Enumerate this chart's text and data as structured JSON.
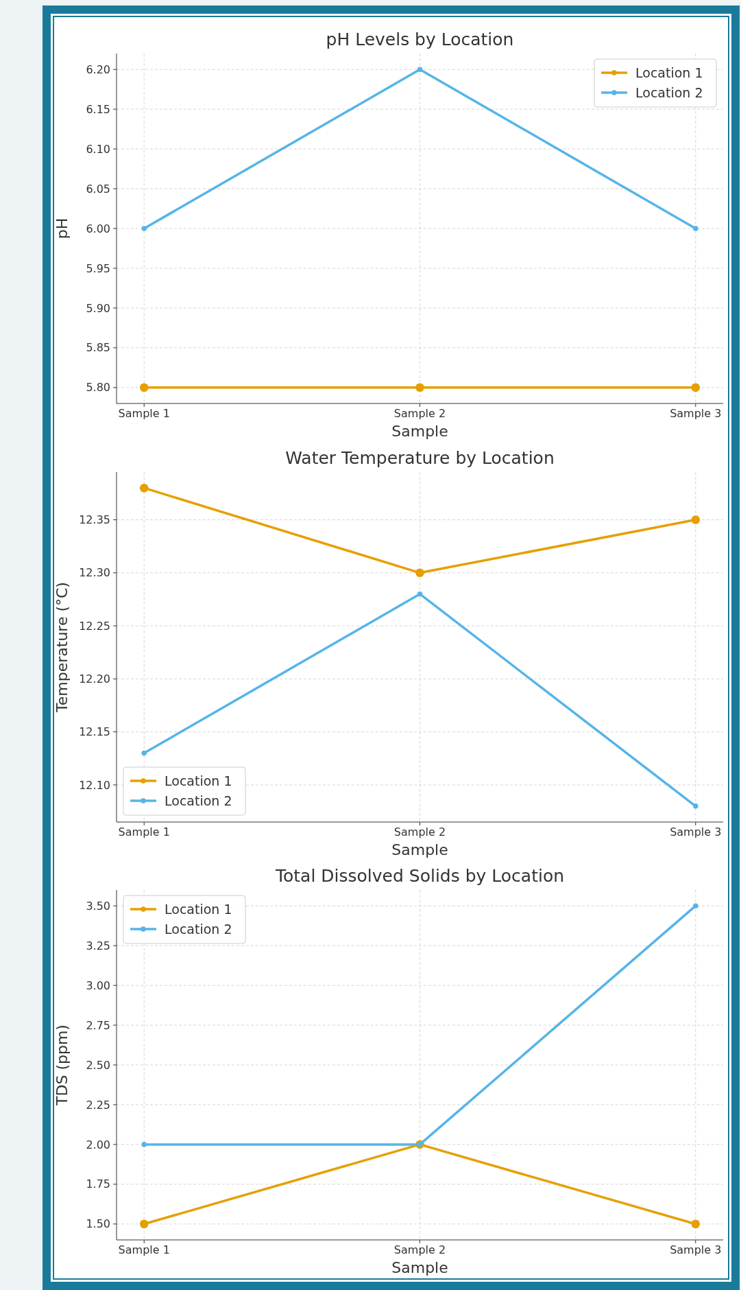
{
  "chart_data": [
    {
      "type": "line",
      "title": "pH Levels by Location",
      "xlabel": "Sample",
      "ylabel": "pH",
      "categories": [
        "Sample 1",
        "Sample 2",
        "Sample 3"
      ],
      "series": [
        {
          "name": "Location 1",
          "color": "#e69f00",
          "values": [
            5.8,
            5.8,
            5.8
          ]
        },
        {
          "name": "Location 2",
          "color": "#56b4e9",
          "values": [
            6.0,
            6.2,
            6.0
          ]
        }
      ],
      "ylim": [
        5.78,
        6.22
      ],
      "yticks": [
        {
          "value": 5.8,
          "label": "5.80"
        },
        {
          "value": 5.85,
          "label": "5.85"
        },
        {
          "value": 5.9,
          "label": "5.90"
        },
        {
          "value": 5.95,
          "label": "5.95"
        },
        {
          "value": 6.0,
          "label": "6.00"
        },
        {
          "value": 6.05,
          "label": "6.05"
        },
        {
          "value": 6.1,
          "label": "6.10"
        },
        {
          "value": 6.15,
          "label": "6.15"
        },
        {
          "value": 6.2,
          "label": "6.20"
        }
      ],
      "grid": true,
      "legend": "top right",
      "marker": "circle"
    },
    {
      "type": "line",
      "title": "Water Temperature by Location",
      "xlabel": "Sample",
      "ylabel": "Temperature (°C)",
      "categories": [
        "Sample 1",
        "Sample 2",
        "Sample 3"
      ],
      "series": [
        {
          "name": "Location 1",
          "color": "#e69f00",
          "values": [
            12.38,
            12.3,
            12.35
          ]
        },
        {
          "name": "Location 2",
          "color": "#56b4e9",
          "values": [
            12.13,
            12.28,
            12.08
          ]
        }
      ],
      "ylim": [
        12.065,
        12.395
      ],
      "yticks": [
        {
          "value": 12.1,
          "label": "12.10"
        },
        {
          "value": 12.15,
          "label": "12.15"
        },
        {
          "value": 12.2,
          "label": "12.20"
        },
        {
          "value": 12.25,
          "label": "12.25"
        },
        {
          "value": 12.3,
          "label": "12.30"
        },
        {
          "value": 12.35,
          "label": "12.35"
        }
      ],
      "grid": true,
      "legend": "bottom left",
      "marker": "circle"
    },
    {
      "type": "line",
      "title": "Total Dissolved Solids by Location",
      "xlabel": "Sample",
      "ylabel": "TDS (ppm)",
      "categories": [
        "Sample 1",
        "Sample 2",
        "Sample 3"
      ],
      "series": [
        {
          "name": "Location 1",
          "color": "#e69f00",
          "values": [
            1.5,
            2.0,
            1.5
          ]
        },
        {
          "name": "Location 2",
          "color": "#56b4e9",
          "values": [
            2.0,
            2.0,
            3.5
          ]
        }
      ],
      "ylim": [
        1.4,
        3.6
      ],
      "yticks": [
        {
          "value": 1.5,
          "label": "1.50"
        },
        {
          "value": 1.75,
          "label": "1.75"
        },
        {
          "value": 2.0,
          "label": "2.00"
        },
        {
          "value": 2.25,
          "label": "2.25"
        },
        {
          "value": 2.5,
          "label": "2.50"
        },
        {
          "value": 2.75,
          "label": "2.75"
        },
        {
          "value": 3.0,
          "label": "3.00"
        },
        {
          "value": 3.25,
          "label": "3.25"
        },
        {
          "value": 3.5,
          "label": "3.50"
        }
      ],
      "grid": true,
      "legend": "top left",
      "marker": "circle"
    }
  ]
}
